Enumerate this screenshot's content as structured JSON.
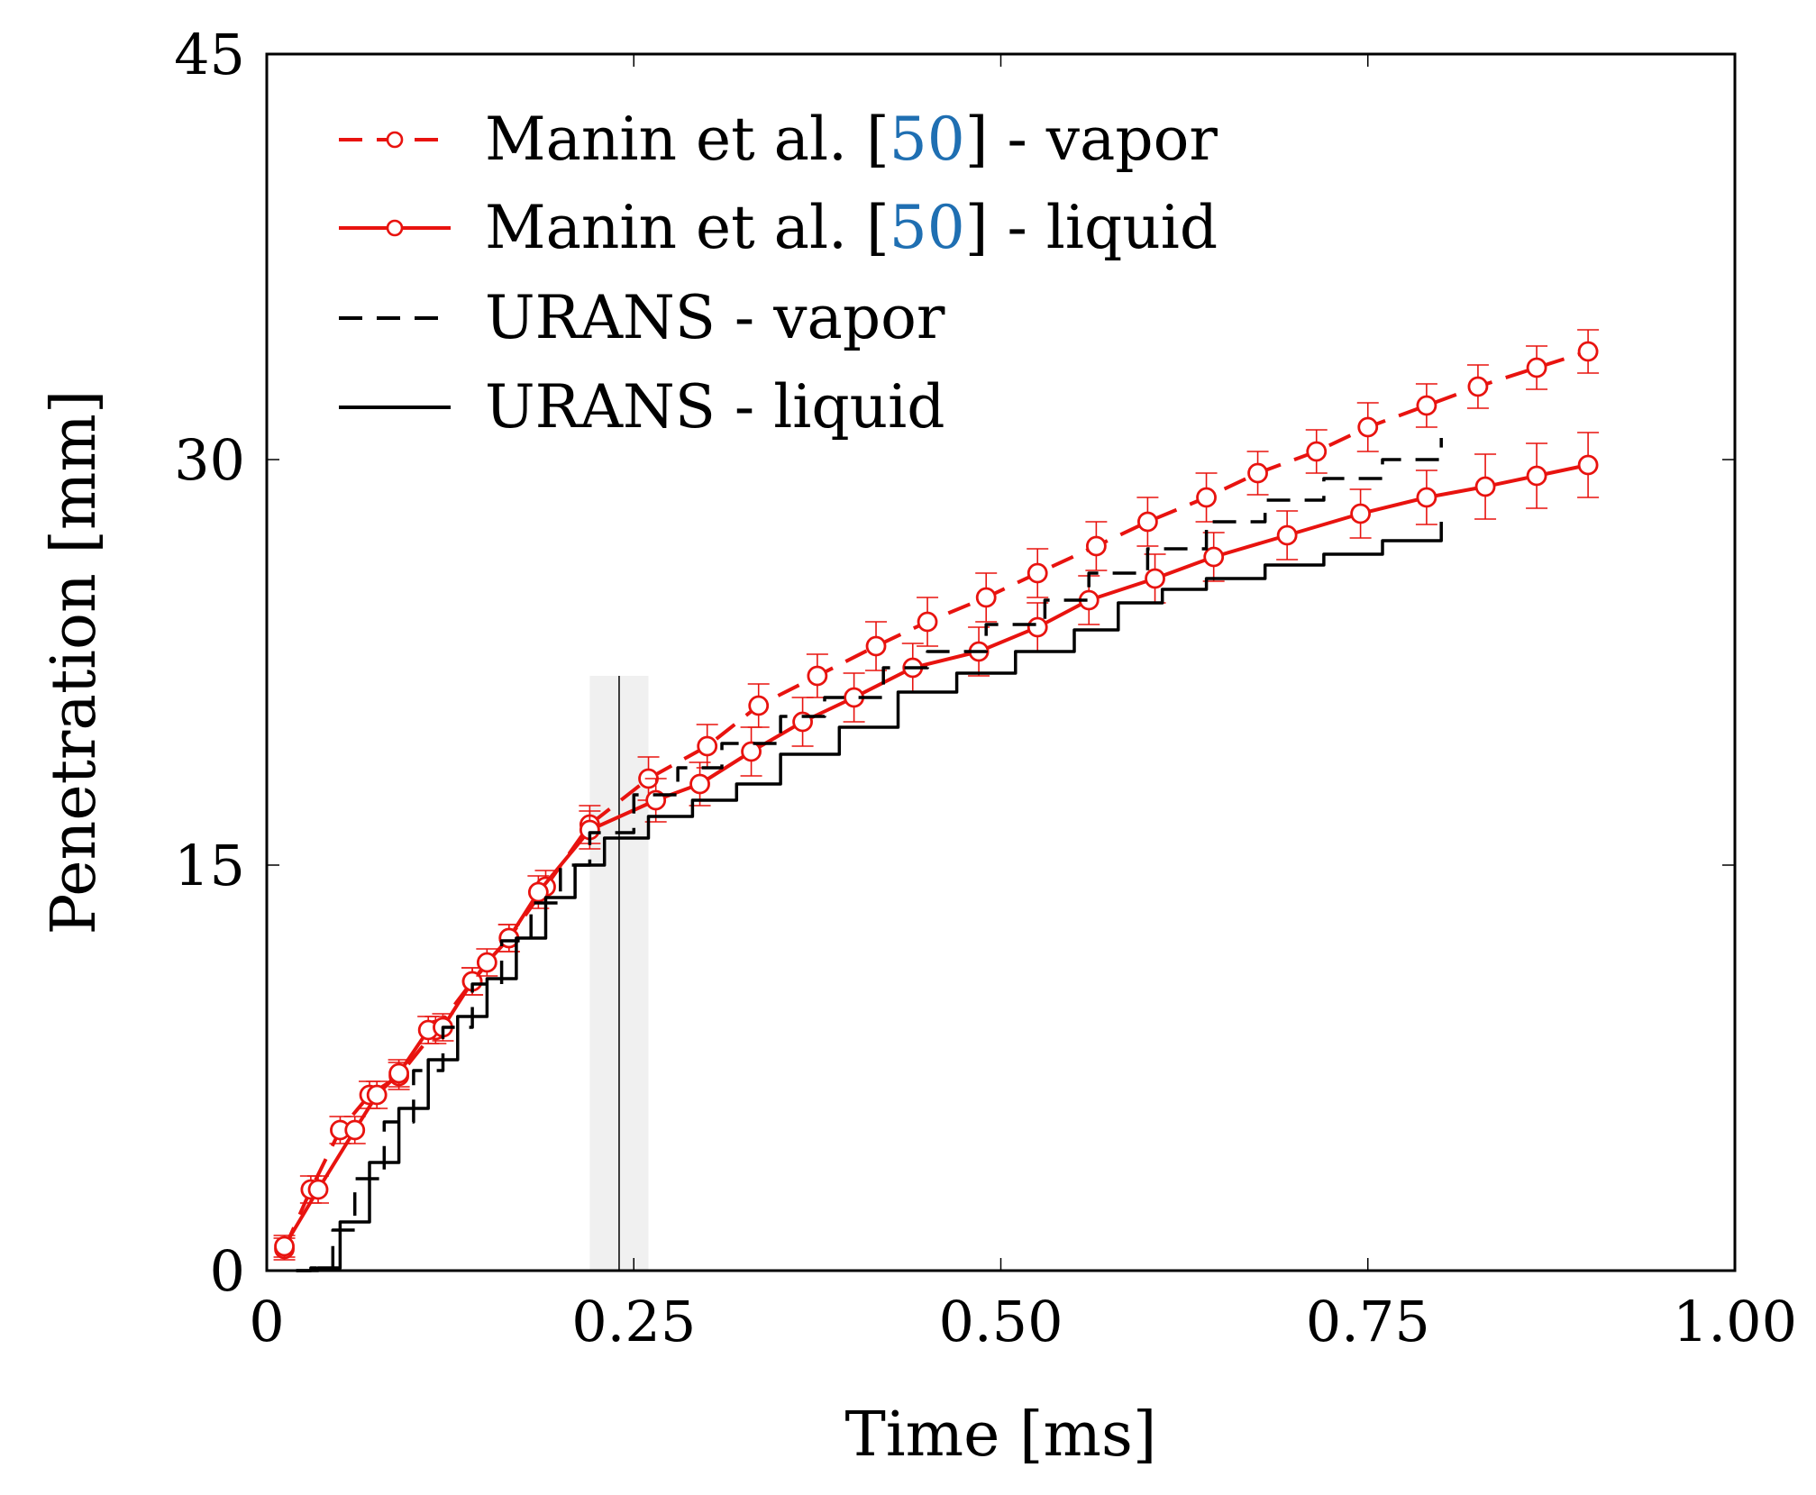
{
  "chart_data": {
    "type": "line",
    "xlabel": "Time [ms]",
    "ylabel": "Penetration [mm]",
    "xlim": [
      0,
      1.0
    ],
    "ylim": [
      0,
      45
    ],
    "xticks": [
      0,
      0.25,
      0.5,
      0.75,
      1.0
    ],
    "xtick_labels": [
      "0",
      "0.25",
      "0.50",
      "0.75",
      "1.00"
    ],
    "yticks": [
      0,
      15,
      30,
      45
    ],
    "ytick_labels": [
      "0",
      "15",
      "30",
      "45"
    ],
    "grid": false,
    "legend_position": "top-left",
    "colors": {
      "experiment": "#e8130f",
      "urans": "#000000",
      "citation": "#1f6fb2",
      "band": "#f0f0f0"
    },
    "shaded_band": {
      "x_from": 0.22,
      "x_to": 0.26,
      "x_line": 0.24,
      "y_top": 22
    },
    "series": [
      {
        "name": "Manin et al. [50] - vapor",
        "legend_prefix": "Manin et al. [",
        "legend_ref": "50",
        "legend_suffix": "] - vapor",
        "style": "dashed-markers",
        "color": "#e8130f",
        "x": [
          0.012,
          0.03,
          0.05,
          0.07,
          0.09,
          0.115,
          0.14,
          0.165,
          0.19,
          0.22,
          0.26,
          0.3,
          0.335,
          0.375,
          0.415,
          0.45,
          0.49,
          0.525,
          0.565,
          0.6,
          0.64,
          0.675,
          0.715,
          0.75,
          0.79,
          0.825,
          0.865,
          0.9
        ],
        "y": [
          0.8,
          3.0,
          5.2,
          6.5,
          7.2,
          8.9,
          10.7,
          12.3,
          14.2,
          16.5,
          18.2,
          19.4,
          20.9,
          22.0,
          23.1,
          24.0,
          24.9,
          25.8,
          26.8,
          27.7,
          28.6,
          29.5,
          30.3,
          31.2,
          32.0,
          32.7,
          33.4,
          34.0
        ],
        "err": [
          0.4,
          0.5,
          0.5,
          0.5,
          0.5,
          0.5,
          0.5,
          0.5,
          0.6,
          0.7,
          0.8,
          0.8,
          0.8,
          0.8,
          0.9,
          0.9,
          0.9,
          0.9,
          0.9,
          0.9,
          0.9,
          0.8,
          0.8,
          0.9,
          0.8,
          0.8,
          0.8,
          0.8
        ]
      },
      {
        "name": "Manin et al. [50] - liquid",
        "legend_prefix": "Manin et al. [",
        "legend_ref": "50",
        "legend_suffix": "] - liquid",
        "style": "solid-markers",
        "color": "#e8130f",
        "x": [
          0.012,
          0.035,
          0.06,
          0.075,
          0.09,
          0.11,
          0.12,
          0.14,
          0.15,
          0.165,
          0.185,
          0.22,
          0.265,
          0.295,
          0.33,
          0.365,
          0.4,
          0.44,
          0.485,
          0.525,
          0.56,
          0.605,
          0.645,
          0.695,
          0.745,
          0.79,
          0.83,
          0.865,
          0.9
        ],
        "y": [
          0.9,
          3.0,
          5.2,
          6.5,
          7.3,
          8.9,
          9.0,
          10.7,
          11.4,
          12.3,
          14.0,
          16.3,
          17.4,
          18.0,
          19.2,
          20.3,
          21.2,
          22.3,
          22.9,
          23.8,
          24.8,
          25.6,
          26.4,
          27.2,
          28.0,
          28.6,
          29.0,
          29.4,
          29.8
        ],
        "err": [
          0.4,
          0.5,
          0.5,
          0.5,
          0.5,
          0.5,
          0.5,
          0.5,
          0.5,
          0.5,
          0.6,
          0.7,
          0.8,
          0.8,
          0.9,
          0.9,
          0.9,
          0.9,
          0.9,
          0.9,
          0.9,
          0.9,
          0.9,
          0.9,
          0.9,
          1.0,
          1.2,
          1.2,
          1.2
        ]
      },
      {
        "name": "URANS - vapor",
        "style": "dashed",
        "color": "#000000",
        "x": [
          0.02,
          0.03,
          0.045,
          0.06,
          0.08,
          0.1,
          0.12,
          0.14,
          0.16,
          0.18,
          0.2,
          0.22,
          0.25,
          0.28,
          0.31,
          0.35,
          0.38,
          0.42,
          0.45,
          0.49,
          0.53,
          0.56,
          0.6,
          0.64,
          0.68,
          0.72,
          0.76,
          0.8
        ],
        "y": [
          0.0,
          0.1,
          1.5,
          3.4,
          5.5,
          7.4,
          9.0,
          10.6,
          12.2,
          13.6,
          15.0,
          16.2,
          17.6,
          18.6,
          19.5,
          20.5,
          21.2,
          22.3,
          22.9,
          23.9,
          24.8,
          25.8,
          26.7,
          27.7,
          28.5,
          29.3,
          30.0,
          30.8
        ]
      },
      {
        "name": "URANS - liquid",
        "style": "solid",
        "color": "#000000",
        "x": [
          0.02,
          0.035,
          0.05,
          0.07,
          0.09,
          0.11,
          0.13,
          0.15,
          0.17,
          0.19,
          0.21,
          0.23,
          0.26,
          0.29,
          0.32,
          0.35,
          0.39,
          0.43,
          0.47,
          0.51,
          0.55,
          0.58,
          0.61,
          0.64,
          0.68,
          0.72,
          0.76,
          0.8
        ],
        "y": [
          0.0,
          0.1,
          1.8,
          4.0,
          6.0,
          7.8,
          9.4,
          10.8,
          12.3,
          13.8,
          15.0,
          16.0,
          16.8,
          17.4,
          18.0,
          19.1,
          20.1,
          21.4,
          22.1,
          22.9,
          23.7,
          24.7,
          25.2,
          25.6,
          26.1,
          26.5,
          27.0,
          27.7
        ]
      }
    ]
  }
}
